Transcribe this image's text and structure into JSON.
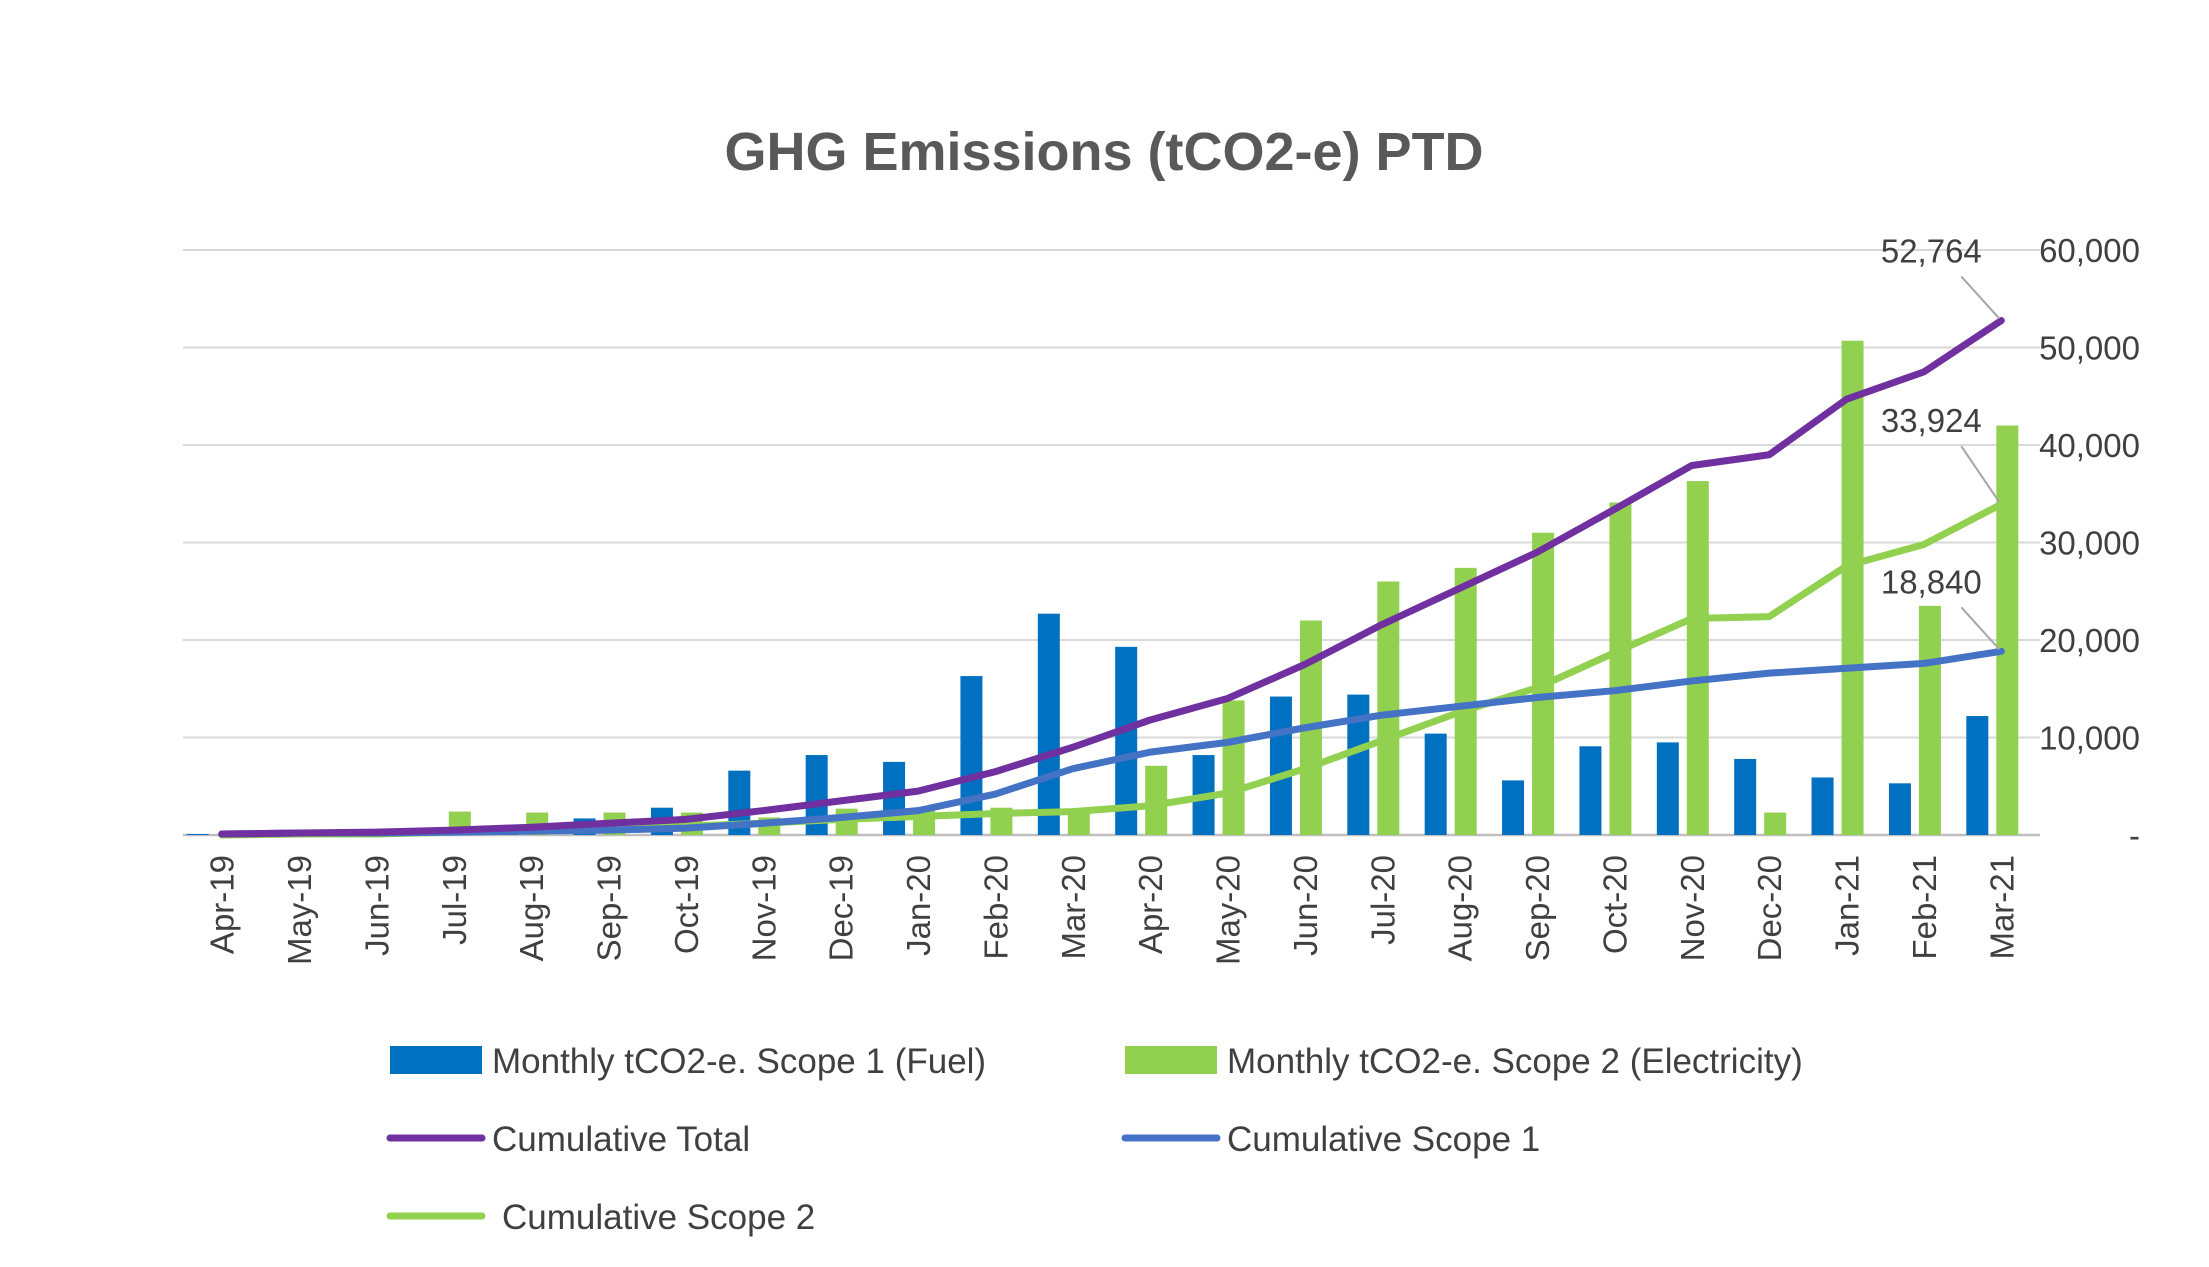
{
  "chart_data": {
    "type": "bar",
    "title": "GHG Emissions (tCO2-e) PTD",
    "xlabel": "",
    "ylabel": "",
    "ylim": [
      0,
      60000
    ],
    "y_ticks": [
      "-",
      "10,000",
      "20,000",
      "30,000",
      "40,000",
      "50,000",
      "60,000"
    ],
    "y_tick_values": [
      0,
      10000,
      20000,
      30000,
      40000,
      50000,
      60000
    ],
    "y_axis_side": "right",
    "grid": true,
    "legend_position": "bottom",
    "categories": [
      "Apr-19",
      "May-19",
      "Jun-19",
      "Jul-19",
      "Aug-19",
      "Sep-19",
      "Oct-19",
      "Nov-19",
      "Dec-19",
      "Jan-20",
      "Feb-20",
      "Mar-20",
      "Apr-20",
      "May-20",
      "Jun-20",
      "Jul-20",
      "Aug-20",
      "Sep-20",
      "Oct-20",
      "Nov-20",
      "Dec-20",
      "Jan-21",
      "Feb-21",
      "Mar-21"
    ],
    "series": [
      {
        "name": "Monthly tCO2-e. Scope 1 (Fuel)",
        "kind": "bar",
        "color": "#0070C0",
        "values": [
          100,
          200,
          200,
          600,
          700,
          1700,
          2800,
          6600,
          8200,
          7500,
          16300,
          22700,
          19300,
          8200,
          14200,
          14400,
          10400,
          5600,
          9100,
          9500,
          7800,
          5900,
          5300,
          12200
        ]
      },
      {
        "name": "Monthly tCO2-e. Scope 2 (Electricity)",
        "kind": "bar",
        "color": "#92D050",
        "values": [
          0,
          100,
          100,
          2400,
          2300,
          2300,
          2300,
          1800,
          2700,
          2500,
          2800,
          2600,
          7100,
          13800,
          22000,
          26000,
          27400,
          31000,
          34100,
          36300,
          2300,
          50700,
          23500,
          42000
        ]
      },
      {
        "name": "Cumulative Total",
        "kind": "line",
        "color": "#7030A0",
        "values": [
          100,
          200,
          300,
          500,
          800,
          1200,
          1600,
          2500,
          3500,
          4500,
          6500,
          9000,
          11800,
          14000,
          17500,
          21600,
          25300,
          29000,
          33400,
          37900,
          39000,
          44700,
          47500,
          52764
        ]
      },
      {
        "name": "Cumulative Scope 1",
        "kind": "line",
        "color": "#4472C4",
        "values": [
          100,
          200,
          200,
          300,
          400,
          500,
          700,
          1200,
          1800,
          2500,
          4200,
          6800,
          8500,
          9500,
          11000,
          12300,
          13200,
          14100,
          14800,
          15800,
          16600,
          17100,
          17600,
          18840
        ]
      },
      {
        "name": "Cumulative Scope 2",
        "kind": "line",
        "color": "#92D050",
        "values": [
          0,
          100,
          100,
          300,
          500,
          700,
          900,
          1200,
          1600,
          1900,
          2200,
          2400,
          3000,
          4300,
          6800,
          9700,
          12600,
          15100,
          18700,
          22200,
          22400,
          27600,
          29800,
          33924
        ]
      }
    ],
    "data_labels": [
      {
        "series": "Cumulative Total",
        "category": "Mar-21",
        "text": "52,764"
      },
      {
        "series": "Cumulative Scope 2",
        "category": "Mar-21",
        "text": "33,924"
      },
      {
        "series": "Cumulative Scope 1",
        "category": "Mar-21",
        "text": "18,840"
      }
    ]
  }
}
